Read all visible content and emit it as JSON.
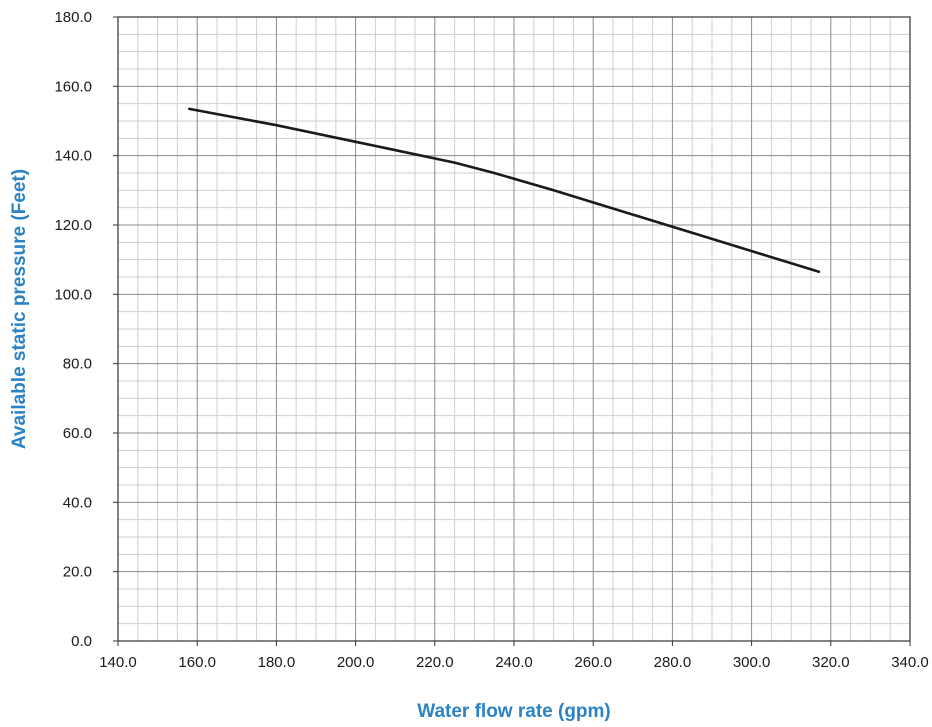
{
  "chart_data": {
    "type": "line",
    "title": "",
    "xlabel": "Water flow rate (gpm)",
    "ylabel": "Available static pressure (Feet)",
    "xlim": [
      140,
      340
    ],
    "ylim": [
      0,
      180
    ],
    "x_ticks": [
      "140.0",
      "160.0",
      "180.0",
      "200.0",
      "220.0",
      "240.0",
      "260.0",
      "280.0",
      "300.0",
      "320.0",
      "340.0"
    ],
    "y_ticks": [
      "0.0",
      "20.0",
      "40.0",
      "60.0",
      "80.0",
      "100.0",
      "120.0",
      "140.0",
      "160.0",
      "180.0"
    ],
    "grid": true,
    "minor_grid": true,
    "line_color": "#1a1a1a",
    "axis_label_color": "#2b83c6",
    "series": [
      {
        "x": [
          158,
          180,
          200,
          225,
          235,
          250,
          270,
          290,
          317
        ],
        "y": [
          153.5,
          148.8,
          144,
          138,
          135,
          130,
          123,
          116,
          106.5
        ]
      }
    ]
  }
}
